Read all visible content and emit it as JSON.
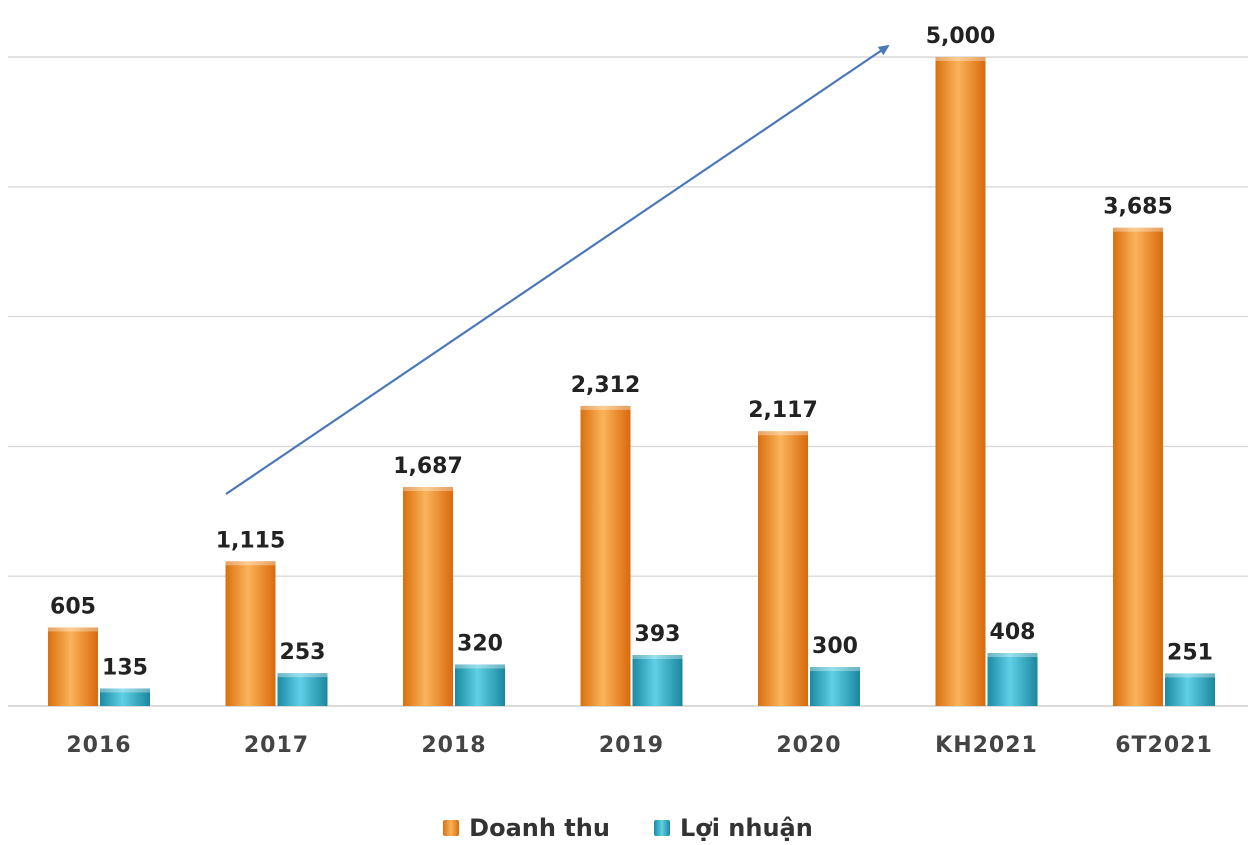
{
  "chart_data": {
    "type": "bar",
    "categories": [
      "2016",
      "2017",
      "2018",
      "2019",
      "2020",
      "KH2021",
      "6T2021"
    ],
    "series": [
      {
        "name": "Doanh thu",
        "color": "#f08a1c",
        "values": [
          605,
          1115,
          1687,
          2312,
          2117,
          5000,
          3685
        ]
      },
      {
        "name": "Lợi nhuận",
        "color": "#2aa9c4",
        "values": [
          135,
          253,
          320,
          393,
          300,
          408,
          251
        ]
      }
    ],
    "value_labels": {
      "Doanh thu": [
        "605",
        "1,115",
        "1,687",
        "2,312",
        "2,117",
        "5,000",
        "3,685"
      ],
      "Lợi nhuận": [
        "135",
        "253",
        "320",
        "393",
        "300",
        "408",
        "251"
      ]
    },
    "ylim": [
      0,
      5000
    ],
    "gridlines": [
      0,
      1000,
      2000,
      3000,
      4000,
      5000
    ],
    "grid": true,
    "legend_position": "bottom",
    "annotation": "upward trend arrow from 2017 to KH2021"
  }
}
